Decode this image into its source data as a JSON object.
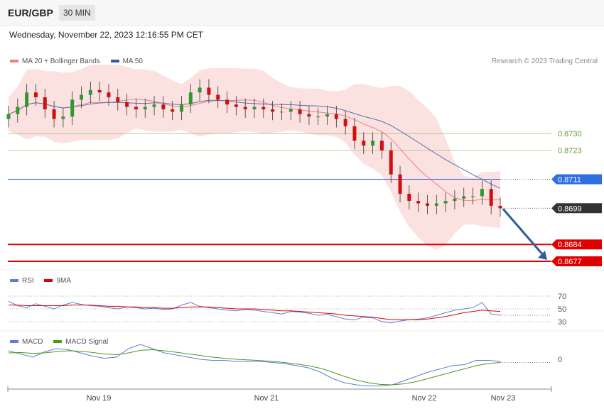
{
  "header": {
    "symbol": "EUR/GBP",
    "timeframe": "30 MIN"
  },
  "timestamp": "Wednesday, November 22, 2023 12:16:55 PM CET",
  "legend": {
    "main": [
      {
        "label": "MA 20 + Bollinger Bands",
        "color": "#f08080"
      },
      {
        "label": "MA 50",
        "color": "#2e5d9e"
      }
    ],
    "rsi": [
      {
        "label": "RSI",
        "color": "#5b7fd6"
      },
      {
        "label": "9MA",
        "color": "#e00000"
      }
    ],
    "macd": [
      {
        "label": "MACD",
        "color": "#5b7fd6"
      },
      {
        "label": "MACD Signal",
        "color": "#4a9a1a"
      }
    ]
  },
  "credit": "Research © 2023 Trading Central",
  "chart_data": {
    "type": "line",
    "title": "EUR/GBP",
    "x_ticks": [
      "Nov 19",
      "Nov 21",
      "Nov 22",
      "Nov 23"
    ],
    "price": {
      "close": [
        0.8738,
        0.8741,
        0.8747,
        0.8745,
        0.874,
        0.8736,
        0.8737,
        0.8744,
        0.8746,
        0.8748,
        0.8747,
        0.8745,
        0.8743,
        0.8741,
        0.874,
        0.8741,
        0.8742,
        0.874,
        0.8739,
        0.8742,
        0.8747,
        0.8749,
        0.8746,
        0.8744,
        0.8742,
        0.8741,
        0.874,
        0.8741,
        0.874,
        0.8739,
        0.8739,
        0.874,
        0.8738,
        0.8737,
        0.8737,
        0.8738,
        0.8736,
        0.8733,
        0.8727,
        0.8725,
        0.8727,
        0.8723,
        0.8713,
        0.8705,
        0.8702,
        0.8701,
        0.87,
        0.8701,
        0.8702,
        0.8703,
        0.8704,
        0.8704,
        0.8707,
        0.87,
        0.8699
      ],
      "levels": [
        {
          "value": "0.8730",
          "color": "#7ab648",
          "style": "support-resistance"
        },
        {
          "value": "0.8723",
          "color": "#7ab648",
          "style": "support-resistance"
        },
        {
          "value": "0.8711",
          "color": "#2f6fe0",
          "style": "pivot"
        },
        {
          "value": "0.8699",
          "color": "#333333",
          "style": "last-price"
        },
        {
          "value": "0.8684",
          "color": "#e00000",
          "style": "target"
        },
        {
          "value": "0.8677",
          "color": "#e00000",
          "style": "target"
        }
      ],
      "forecast_arrow": {
        "from": 0.8699,
        "to": 0.8677,
        "direction": "down",
        "color": "#2e5d9e"
      }
    },
    "rsi": {
      "ticks": [
        "70",
        "50",
        "30"
      ],
      "rsi": [
        62,
        55,
        52,
        58,
        54,
        50,
        56,
        60,
        57,
        55,
        54,
        52,
        50,
        53,
        52,
        50,
        51,
        49,
        50,
        56,
        60,
        54,
        52,
        50,
        48,
        47,
        49,
        48,
        46,
        44,
        42,
        46,
        45,
        43,
        40,
        41,
        38,
        34,
        33,
        37,
        36,
        30,
        28,
        31,
        33,
        34,
        36,
        40,
        44,
        48,
        50,
        52,
        60,
        42,
        40
      ],
      "ma9": [
        56,
        56,
        55,
        55,
        55,
        55,
        55,
        56,
        56,
        56,
        55,
        54,
        54,
        53,
        53,
        52,
        52,
        51,
        51,
        52,
        53,
        53,
        53,
        52,
        51,
        50,
        50,
        50,
        49,
        48,
        47,
        47,
        46,
        45,
        44,
        43,
        42,
        40,
        39,
        38,
        37,
        35,
        33,
        33,
        33,
        33,
        34,
        36,
        38,
        41,
        44,
        46,
        48,
        47,
        46
      ]
    },
    "macd": {
      "ticks": [
        "0"
      ],
      "macd": [
        0.4,
        0.25,
        0.1,
        0.35,
        0.5,
        0.45,
        0.3,
        0.15,
        0.05,
        0.1,
        0.5,
        0.7,
        0.5,
        0.3,
        0.2,
        0.1,
        0.0,
        -0.05,
        -0.05,
        -0.1,
        -0.1,
        -0.1,
        -0.15,
        -0.2,
        -0.3,
        -0.4,
        -0.6,
        -0.9,
        -1.1,
        -1.2,
        -1.25,
        -1.25,
        -1.2,
        -1.0,
        -0.8,
        -0.6,
        -0.45,
        -0.3,
        -0.25,
        -0.05,
        -0.05,
        -0.1
      ],
      "signal": [
        0.3,
        0.32,
        0.28,
        0.3,
        0.36,
        0.4,
        0.38,
        0.32,
        0.25,
        0.22,
        0.3,
        0.42,
        0.45,
        0.4,
        0.33,
        0.25,
        0.18,
        0.1,
        0.05,
        0.0,
        -0.03,
        -0.06,
        -0.1,
        -0.15,
        -0.22,
        -0.3,
        -0.42,
        -0.6,
        -0.8,
        -0.98,
        -1.1,
        -1.18,
        -1.2,
        -1.15,
        -1.05,
        -0.9,
        -0.75,
        -0.6,
        -0.45,
        -0.3,
        -0.2,
        -0.15
      ]
    }
  }
}
